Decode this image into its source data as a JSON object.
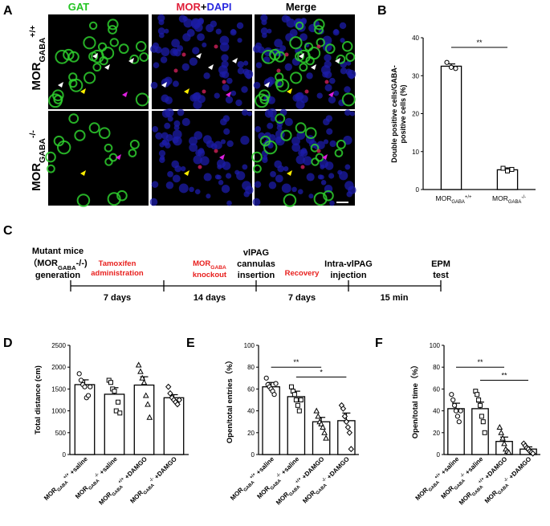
{
  "panel_letters": {
    "a": "A",
    "b": "B",
    "c": "C",
    "d": "D",
    "e": "E",
    "f": "F"
  },
  "panelA": {
    "col_gat": "GAT",
    "col_mor": "MOR",
    "col_plus": "+",
    "col_dapi": "DAPI",
    "col_merge": "Merge",
    "row1": {
      "base": "MOR",
      "sub": "GABA",
      "sup": "+/+"
    },
    "row2": {
      "base": "MOR",
      "sub": "GABA",
      "sup": "-/-"
    },
    "colors": {
      "gat": "#22c422",
      "mor": "#e0203a",
      "dapi": "#2a2adf"
    }
  },
  "panelB": {
    "ylabel_line1": "Double positive cells/GABA-",
    "ylabel_line2": "positive cells (%)",
    "sig": "**",
    "ticks": [
      "0",
      "10",
      "20",
      "30",
      "40"
    ],
    "cat1": {
      "base": "MOR",
      "sub": "GABA",
      "sup": "+/+"
    },
    "cat2": {
      "base": "MOR",
      "sub": "GABA",
      "sup": "-/-"
    }
  },
  "panelC": {
    "s0_l1": "Mutant mice",
    "s0_l2": "（MOR",
    "s0_sub": "GABA",
    "s0_l2b": "-/-)",
    "s0_l3": "generation",
    "tam_l1": "Tamoxifen",
    "tam_l2": "administration",
    "ko_base": "MOR",
    "ko_sub": "GABA",
    "ko_l2": "knockout",
    "vl_l1": "vlPAG",
    "vl_l2": "cannulas",
    "vl_l3": "insertion",
    "rec": "Recovery",
    "inj_l1": "Intra-vlPAG",
    "inj_l2": "injection",
    "epm_l1": "EPM",
    "epm_l2": "test",
    "d1": "7 days",
    "d2": "14 days",
    "d3": "7 days",
    "d4": "15 min",
    "red": "#e8201e"
  },
  "panelD": {
    "ylabel": "Total distance (cm)",
    "ticks": [
      "0",
      "500",
      "1000",
      "1500",
      "2000",
      "2500"
    ]
  },
  "panelE": {
    "ylabel": "Open/total entries（%）",
    "ticks": [
      "0",
      "20",
      "40",
      "60",
      "80",
      "100"
    ],
    "sig1": "**",
    "sig2": "*"
  },
  "panelF": {
    "ylabel": "Open/total time（%）",
    "ticks": [
      "0",
      "20",
      "40",
      "60",
      "80",
      "100"
    ],
    "sig1": "**",
    "sig2": "**"
  },
  "group_labels": {
    "g1": {
      "base": "MOR",
      "sub": "GABA",
      "sup": "+/+",
      "tail": " +saline"
    },
    "g2": {
      "base": "MOR",
      "sub": "GABA",
      "sup": "-/-",
      "tail": " +saline"
    },
    "g3": {
      "base": "MOR",
      "sub": "GABA",
      "sup": "+/+",
      "tail": " +DAMGO"
    },
    "g4": {
      "base": "MOR",
      "sub": "GABA",
      "sup": "-/-",
      "tail": " +DAMGO"
    }
  },
  "chart_data": [
    {
      "type": "bar",
      "panel": "B",
      "categories": [
        "MORGABA+/+",
        "MORGABA-/-"
      ],
      "values": [
        32.5,
        5.2
      ],
      "errors": [
        0.6,
        0.5
      ],
      "ylim": [
        0,
        40
      ],
      "points": [
        [
          33.5,
          32.2,
          31.9
        ],
        [
          5.6,
          4.9,
          5.3
        ]
      ]
    },
    {
      "type": "bar",
      "panel": "D",
      "categories": [
        "MORGABA+/+ +saline",
        "MORGABA-/- +saline",
        "MORGABA+/+ +DAMGO",
        "MORGABA-/- +DAMGO"
      ],
      "values": [
        1600,
        1380,
        1590,
        1300
      ],
      "errors": [
        110,
        150,
        190,
        70
      ],
      "ylim": [
        0,
        2500
      ],
      "points": [
        [
          1850,
          1700,
          1600,
          1550,
          1300,
          1350,
          1550
        ],
        [
          1700,
          1650,
          1500,
          1450,
          1000,
          1200,
          950
        ],
        [
          2050,
          1900,
          1750,
          1650,
          1350,
          1150,
          850
        ],
        [
          1550,
          1400,
          1300,
          1250,
          1200,
          1150,
          1250
        ]
      ]
    },
    {
      "type": "bar",
      "panel": "E",
      "categories": [
        "MORGABA+/+ +saline",
        "MORGABA-/- +saline",
        "MORGABA+/+ +DAMGO",
        "MORGABA-/- +DAMGO"
      ],
      "values": [
        62,
        53,
        30,
        31
      ],
      "errors": [
        4,
        5,
        4,
        7
      ],
      "ylim": [
        0,
        100
      ],
      "points": [
        [
          70,
          64,
          62,
          60,
          58,
          55,
          65
        ],
        [
          62,
          58,
          55,
          50,
          45,
          40,
          50
        ],
        [
          40,
          35,
          30,
          28,
          25,
          20,
          15
        ],
        [
          45,
          42,
          35,
          30,
          25,
          20,
          5
        ]
      ]
    },
    {
      "type": "bar",
      "panel": "F",
      "categories": [
        "MORGABA+/+ +saline",
        "MORGABA-/- +saline",
        "MORGABA+/+ +DAMGO",
        "MORGABA-/- +DAMGO"
      ],
      "values": [
        42,
        42,
        12,
        5
      ],
      "errors": [
        5,
        6,
        4,
        2
      ],
      "ylim": [
        0,
        100
      ],
      "points": [
        [
          55,
          50,
          45,
          40,
          35,
          30,
          40
        ],
        [
          58,
          55,
          50,
          45,
          35,
          30,
          20
        ],
        [
          25,
          20,
          15,
          10,
          5,
          3,
          2
        ],
        [
          10,
          8,
          6,
          5,
          3,
          2,
          1
        ]
      ]
    }
  ]
}
